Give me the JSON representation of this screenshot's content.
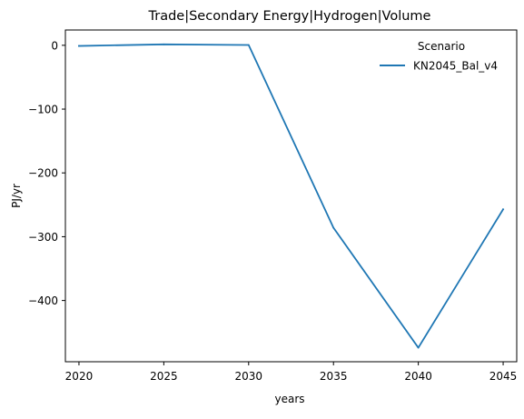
{
  "chart_data": {
    "type": "line",
    "title": "Trade|Secondary Energy|Hydrogen|Volume",
    "xlabel": "years",
    "ylabel": "PJ/yr",
    "x": [
      2020,
      2025,
      2030,
      2035,
      2040,
      2045
    ],
    "xticks": [
      2020,
      2025,
      2030,
      2035,
      2040,
      2045
    ],
    "xtick_labels": [
      "2020",
      "2025",
      "2030",
      "2035",
      "2040",
      "2045"
    ],
    "yticks": [
      0,
      -100,
      -200,
      -300,
      -400
    ],
    "ytick_labels": [
      "0",
      "−100",
      "−200",
      "−300",
      "−400"
    ],
    "xlim": [
      2019.2,
      2045.8
    ],
    "ylim": [
      -496,
      24
    ],
    "grid": false,
    "legend": {
      "title": "Scenario",
      "position": "top-right"
    },
    "series": [
      {
        "name": "KN2045_Bal_v4",
        "color": "#1f77b4",
        "values": [
          -1,
          1.5,
          0.5,
          -286,
          -474,
          -257
        ]
      }
    ]
  }
}
